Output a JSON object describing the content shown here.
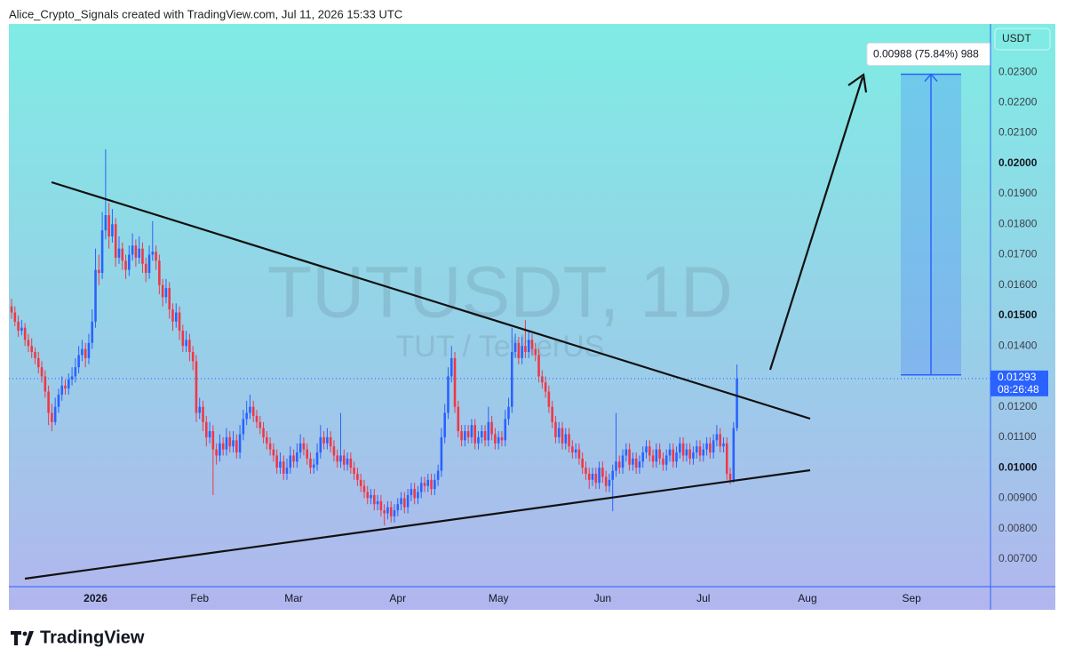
{
  "chart_data": {
    "type": "candlestick",
    "header": "Alice_Crypto_Signals created with TradingView.com, Jul 11, 2026 15:33 UTC",
    "watermark": "TUTUSDT, 1D",
    "watermark_sub": "TUT / TetherUS",
    "currency": "USDT",
    "countdown": "08:26:48",
    "brand": "TradingView",
    "up_color": "#2962ff",
    "down_color": "#f23645",
    "grid": false,
    "ylim": [
      0.00609,
      0.02458
    ],
    "yticks": [
      {
        "value": 0.023,
        "label": "0.02300"
      },
      {
        "value": 0.022,
        "label": "0.02200"
      },
      {
        "value": 0.021,
        "label": "0.02100"
      },
      {
        "value": 0.02,
        "label": "0.02000"
      },
      {
        "value": 0.019,
        "label": "0.01900"
      },
      {
        "value": 0.018,
        "label": "0.01800"
      },
      {
        "value": 0.017,
        "label": "0.01700"
      },
      {
        "value": 0.016,
        "label": "0.01600"
      },
      {
        "value": 0.015,
        "label": "0.01500"
      },
      {
        "value": 0.014,
        "label": "0.01400"
      },
      {
        "value": 0.012,
        "label": "0.01200"
      },
      {
        "value": 0.011,
        "label": "0.01100"
      },
      {
        "value": 0.01,
        "label": "0.01000"
      },
      {
        "value": 0.009,
        "label": "0.00900"
      },
      {
        "value": 0.008,
        "label": "0.00800"
      },
      {
        "value": 0.007,
        "label": "0.00700"
      }
    ],
    "xlim": [
      -0.8,
      291.5
    ],
    "xticks": [
      {
        "value": 25,
        "label": "2026"
      },
      {
        "value": 56,
        "label": "Feb"
      },
      {
        "value": 84,
        "label": "Mar"
      },
      {
        "value": 115,
        "label": "Apr"
      },
      {
        "value": 145,
        "label": "May"
      },
      {
        "value": 176,
        "label": "Jun"
      },
      {
        "value": 206,
        "label": "Jul"
      },
      {
        "value": 237,
        "label": "Aug"
      },
      {
        "value": 268,
        "label": "Sep"
      }
    ],
    "measure": {
      "label": "0.00988 (75.84%) 988",
      "from": 0.01305,
      "to": 0.02293
    },
    "candles": [
      [
        0.0153,
        0.01555,
        0.0149,
        0.0151
      ],
      [
        0.0151,
        0.0153,
        0.01465,
        0.0148
      ],
      [
        0.0148,
        0.015,
        0.0143,
        0.0145
      ],
      [
        0.0145,
        0.01485,
        0.01435,
        0.0146
      ],
      [
        0.0146,
        0.01475,
        0.014,
        0.0142
      ],
      [
        0.0142,
        0.0144,
        0.0138,
        0.014
      ],
      [
        0.014,
        0.01425,
        0.0136,
        0.0138
      ],
      [
        0.0138,
        0.01395,
        0.0134,
        0.0136
      ],
      [
        0.0136,
        0.0138,
        0.0131,
        0.0133
      ],
      [
        0.0133,
        0.0135,
        0.0128,
        0.013
      ],
      [
        0.013,
        0.0132,
        0.0123,
        0.0125
      ],
      [
        0.0125,
        0.0127,
        0.0114,
        0.0118
      ],
      [
        0.0118,
        0.0121,
        0.0112,
        0.0115
      ],
      [
        0.0115,
        0.0123,
        0.0114,
        0.012
      ],
      [
        0.012,
        0.0126,
        0.0118,
        0.0124
      ],
      [
        0.0124,
        0.013,
        0.0122,
        0.0127
      ],
      [
        0.0127,
        0.0129,
        0.0124,
        0.0126
      ],
      [
        0.0126,
        0.0131,
        0.0124,
        0.0129
      ],
      [
        0.0129,
        0.0133,
        0.0127,
        0.013
      ],
      [
        0.013,
        0.0136,
        0.0128,
        0.0133
      ],
      [
        0.0133,
        0.014,
        0.0131,
        0.0137
      ],
      [
        0.0137,
        0.0142,
        0.0135,
        0.0139
      ],
      [
        0.0139,
        0.0141,
        0.0133,
        0.0136
      ],
      [
        0.0136,
        0.0144,
        0.0134,
        0.0141
      ],
      [
        0.0141,
        0.0152,
        0.0139,
        0.0148
      ],
      [
        0.0148,
        0.0172,
        0.0146,
        0.0165
      ],
      [
        0.0165,
        0.017,
        0.016,
        0.0164
      ],
      [
        0.0164,
        0.0184,
        0.0162,
        0.0178
      ],
      [
        0.0178,
        0.02046,
        0.0175,
        0.0183
      ],
      [
        0.0183,
        0.0187,
        0.0172,
        0.0176
      ],
      [
        0.0176,
        0.0185,
        0.0174,
        0.018
      ],
      [
        0.018,
        0.0182,
        0.0166,
        0.0169
      ],
      [
        0.0169,
        0.0176,
        0.0167,
        0.0172
      ],
      [
        0.0172,
        0.0174,
        0.0165,
        0.0168
      ],
      [
        0.0168,
        0.017,
        0.0162,
        0.0165
      ],
      [
        0.0165,
        0.0173,
        0.0163,
        0.017
      ],
      [
        0.017,
        0.0177,
        0.0168,
        0.0173
      ],
      [
        0.0173,
        0.0175,
        0.0166,
        0.0169
      ],
      [
        0.0169,
        0.0176,
        0.0167,
        0.0172
      ],
      [
        0.0172,
        0.0174,
        0.0164,
        0.0167
      ],
      [
        0.0167,
        0.0169,
        0.0161,
        0.0164
      ],
      [
        0.0164,
        0.0173,
        0.0162,
        0.017
      ],
      [
        0.017,
        0.0181,
        0.0168,
        0.0171
      ],
      [
        0.0171,
        0.0173,
        0.0165,
        0.0168
      ],
      [
        0.0168,
        0.017,
        0.0157,
        0.016
      ],
      [
        0.016,
        0.0162,
        0.0153,
        0.0156
      ],
      [
        0.0156,
        0.0162,
        0.0154,
        0.0159
      ],
      [
        0.0159,
        0.0161,
        0.0149,
        0.0152
      ],
      [
        0.0152,
        0.0154,
        0.0145,
        0.0148
      ],
      [
        0.0148,
        0.0154,
        0.0146,
        0.0151
      ],
      [
        0.0151,
        0.0153,
        0.0142,
        0.0145
      ],
      [
        0.0145,
        0.0147,
        0.0138,
        0.014
      ],
      [
        0.014,
        0.0145,
        0.0138,
        0.0142
      ],
      [
        0.0142,
        0.0144,
        0.0135,
        0.0138
      ],
      [
        0.0138,
        0.014,
        0.0132,
        0.0135
      ],
      [
        0.0135,
        0.0137,
        0.0115,
        0.0118
      ],
      [
        0.0118,
        0.0123,
        0.0116,
        0.012
      ],
      [
        0.012,
        0.0122,
        0.0112,
        0.0115
      ],
      [
        0.0115,
        0.0117,
        0.0107,
        0.011
      ],
      [
        0.011,
        0.0115,
        0.0108,
        0.0112
      ],
      [
        0.0112,
        0.0114,
        0.0091,
        0.0106
      ],
      [
        0.0106,
        0.0108,
        0.0101,
        0.0104
      ],
      [
        0.0104,
        0.0111,
        0.0102,
        0.0108
      ],
      [
        0.0108,
        0.011,
        0.0104,
        0.0106
      ],
      [
        0.0106,
        0.0113,
        0.0104,
        0.011
      ],
      [
        0.011,
        0.0112,
        0.0105,
        0.0107
      ],
      [
        0.0107,
        0.0112,
        0.0105,
        0.0109
      ],
      [
        0.0109,
        0.0111,
        0.0103,
        0.0105
      ],
      [
        0.0105,
        0.0114,
        0.0103,
        0.0111
      ],
      [
        0.0111,
        0.0119,
        0.0109,
        0.0116
      ],
      [
        0.0116,
        0.0122,
        0.0114,
        0.0118
      ],
      [
        0.0118,
        0.0124,
        0.0116,
        0.012
      ],
      [
        0.012,
        0.0122,
        0.0115,
        0.0117
      ],
      [
        0.0117,
        0.0119,
        0.0113,
        0.0115
      ],
      [
        0.0115,
        0.0117,
        0.0111,
        0.0113
      ],
      [
        0.0113,
        0.0115,
        0.0108,
        0.011
      ],
      [
        0.011,
        0.0112,
        0.0106,
        0.0108
      ],
      [
        0.0108,
        0.011,
        0.0104,
        0.0106
      ],
      [
        0.0106,
        0.0108,
        0.0102,
        0.0104
      ],
      [
        0.0104,
        0.0106,
        0.0098,
        0.01
      ],
      [
        0.01,
        0.0105,
        0.0098,
        0.0102
      ],
      [
        0.0102,
        0.0104,
        0.0096,
        0.0098
      ],
      [
        0.0098,
        0.0103,
        0.0096,
        0.01
      ],
      [
        0.01,
        0.0107,
        0.0098,
        0.0104
      ],
      [
        0.0104,
        0.0106,
        0.01,
        0.0102
      ],
      [
        0.0102,
        0.0108,
        0.01,
        0.0105
      ],
      [
        0.0105,
        0.0111,
        0.0103,
        0.0108
      ],
      [
        0.0108,
        0.011,
        0.0104,
        0.0106
      ],
      [
        0.0106,
        0.0108,
        0.0101,
        0.0103
      ],
      [
        0.0103,
        0.0105,
        0.0098,
        0.01
      ],
      [
        0.01,
        0.0103,
        0.0098,
        0.0101
      ],
      [
        0.0101,
        0.0108,
        0.0099,
        0.0105
      ],
      [
        0.0105,
        0.0114,
        0.0103,
        0.011
      ],
      [
        0.011,
        0.0112,
        0.0106,
        0.0108
      ],
      [
        0.0108,
        0.0113,
        0.0106,
        0.011
      ],
      [
        0.011,
        0.0112,
        0.0105,
        0.0107
      ],
      [
        0.0107,
        0.0109,
        0.0102,
        0.0104
      ],
      [
        0.0104,
        0.0106,
        0.01,
        0.0102
      ],
      [
        0.0102,
        0.0118,
        0.01,
        0.0104
      ],
      [
        0.0104,
        0.0106,
        0.0099,
        0.0101
      ],
      [
        0.0101,
        0.0105,
        0.0099,
        0.0103
      ],
      [
        0.0103,
        0.0105,
        0.0098,
        0.01
      ],
      [
        0.01,
        0.0102,
        0.0096,
        0.0098
      ],
      [
        0.0098,
        0.01,
        0.0094,
        0.0096
      ],
      [
        0.0096,
        0.0098,
        0.0092,
        0.0094
      ],
      [
        0.0094,
        0.0096,
        0.009,
        0.0092
      ],
      [
        0.0092,
        0.0094,
        0.0088,
        0.009
      ],
      [
        0.009,
        0.0093,
        0.0088,
        0.0091
      ],
      [
        0.0091,
        0.0093,
        0.0086,
        0.0088
      ],
      [
        0.0088,
        0.0091,
        0.0086,
        0.0089
      ],
      [
        0.0089,
        0.0091,
        0.0084,
        0.0086
      ],
      [
        0.0086,
        0.0088,
        0.0081,
        0.0085
      ],
      [
        0.0085,
        0.0089,
        0.0083,
        0.0087
      ],
      [
        0.0087,
        0.0089,
        0.0082,
        0.0084
      ],
      [
        0.0084,
        0.0088,
        0.0082,
        0.0086
      ],
      [
        0.0086,
        0.009,
        0.0084,
        0.0088
      ],
      [
        0.0088,
        0.0092,
        0.0086,
        0.009
      ],
      [
        0.009,
        0.0092,
        0.0085,
        0.0087
      ],
      [
        0.0087,
        0.0093,
        0.0085,
        0.0091
      ],
      [
        0.0091,
        0.0095,
        0.0089,
        0.0093
      ],
      [
        0.0093,
        0.0095,
        0.0088,
        0.009
      ],
      [
        0.009,
        0.0094,
        0.0088,
        0.0092
      ],
      [
        0.0092,
        0.0097,
        0.009,
        0.0095
      ],
      [
        0.0095,
        0.0097,
        0.0092,
        0.0094
      ],
      [
        0.0094,
        0.0098,
        0.0092,
        0.0096
      ],
      [
        0.0096,
        0.0098,
        0.0091,
        0.0093
      ],
      [
        0.0093,
        0.0098,
        0.0091,
        0.0096
      ],
      [
        0.0096,
        0.0101,
        0.0094,
        0.0099
      ],
      [
        0.0099,
        0.0113,
        0.0097,
        0.011
      ],
      [
        0.011,
        0.0121,
        0.0108,
        0.0118
      ],
      [
        0.0118,
        0.0133,
        0.0116,
        0.013
      ],
      [
        0.013,
        0.014,
        0.0128,
        0.0136
      ],
      [
        0.0136,
        0.0138,
        0.0118,
        0.012
      ],
      [
        0.012,
        0.0122,
        0.011,
        0.0112
      ],
      [
        0.0112,
        0.0114,
        0.0107,
        0.0109
      ],
      [
        0.0109,
        0.0114,
        0.0107,
        0.0112
      ],
      [
        0.0112,
        0.0114,
        0.0108,
        0.011
      ],
      [
        0.011,
        0.0116,
        0.0108,
        0.0114
      ],
      [
        0.0114,
        0.0116,
        0.0106,
        0.0108
      ],
      [
        0.0108,
        0.0112,
        0.0106,
        0.011
      ],
      [
        0.011,
        0.0114,
        0.0108,
        0.0112
      ],
      [
        0.0112,
        0.0114,
        0.0107,
        0.0109
      ],
      [
        0.0109,
        0.012,
        0.0107,
        0.0115
      ],
      [
        0.0115,
        0.0117,
        0.0109,
        0.0111
      ],
      [
        0.0111,
        0.0113,
        0.0106,
        0.0108
      ],
      [
        0.0108,
        0.0112,
        0.0106,
        0.011
      ],
      [
        0.011,
        0.0112,
        0.0107,
        0.0109
      ],
      [
        0.0109,
        0.0119,
        0.0107,
        0.0116
      ],
      [
        0.0116,
        0.0123,
        0.0114,
        0.012
      ],
      [
        0.012,
        0.0146,
        0.0118,
        0.0138
      ],
      [
        0.0138,
        0.0144,
        0.0136,
        0.0141
      ],
      [
        0.0141,
        0.0143,
        0.0134,
        0.0136
      ],
      [
        0.0136,
        0.0143,
        0.0134,
        0.014
      ],
      [
        0.014,
        0.01485,
        0.0136,
        0.0138
      ],
      [
        0.0138,
        0.0145,
        0.0136,
        0.0142
      ],
      [
        0.0142,
        0.0144,
        0.0137,
        0.0139
      ],
      [
        0.0139,
        0.0141,
        0.0135,
        0.0137
      ],
      [
        0.0137,
        0.0139,
        0.0128,
        0.013
      ],
      [
        0.013,
        0.0132,
        0.0126,
        0.0128
      ],
      [
        0.0128,
        0.013,
        0.0123,
        0.0125
      ],
      [
        0.0125,
        0.0127,
        0.0118,
        0.012
      ],
      [
        0.012,
        0.0122,
        0.0113,
        0.0115
      ],
      [
        0.0115,
        0.0117,
        0.0108,
        0.011
      ],
      [
        0.011,
        0.0115,
        0.0108,
        0.0113
      ],
      [
        0.0113,
        0.0115,
        0.0106,
        0.0108
      ],
      [
        0.0108,
        0.0113,
        0.0106,
        0.0111
      ],
      [
        0.0111,
        0.0113,
        0.0105,
        0.0107
      ],
      [
        0.0107,
        0.0109,
        0.0103,
        0.0105
      ],
      [
        0.0105,
        0.0108,
        0.0103,
        0.0106
      ],
      [
        0.0106,
        0.0108,
        0.0101,
        0.0103
      ],
      [
        0.0103,
        0.0105,
        0.0098,
        0.01
      ],
      [
        0.01,
        0.0102,
        0.0096,
        0.0098
      ],
      [
        0.0098,
        0.01,
        0.0093,
        0.0096
      ],
      [
        0.0096,
        0.01,
        0.0094,
        0.0098
      ],
      [
        0.0098,
        0.01,
        0.0093,
        0.0095
      ],
      [
        0.0095,
        0.0102,
        0.0093,
        0.01
      ],
      [
        0.01,
        0.0102,
        0.0095,
        0.0097
      ],
      [
        0.0097,
        0.0099,
        0.0092,
        0.0094
      ],
      [
        0.0094,
        0.0098,
        0.0092,
        0.0096
      ],
      [
        0.0096,
        0.0101,
        0.00857,
        0.0099
      ],
      [
        0.0099,
        0.0118,
        0.0097,
        0.0102
      ],
      [
        0.0102,
        0.0104,
        0.0098,
        0.01
      ],
      [
        0.01,
        0.0106,
        0.0098,
        0.0104
      ],
      [
        0.0104,
        0.0108,
        0.0102,
        0.0106
      ],
      [
        0.0106,
        0.0108,
        0.0099,
        0.0101
      ],
      [
        0.0101,
        0.0105,
        0.0099,
        0.0103
      ],
      [
        0.0103,
        0.0105,
        0.0098,
        0.01
      ],
      [
        0.01,
        0.0104,
        0.0098,
        0.0102
      ],
      [
        0.0102,
        0.0107,
        0.01,
        0.0105
      ],
      [
        0.0105,
        0.0109,
        0.0103,
        0.0107
      ],
      [
        0.0107,
        0.0109,
        0.0102,
        0.0104
      ],
      [
        0.0104,
        0.0106,
        0.01,
        0.0102
      ],
      [
        0.0102,
        0.0108,
        0.01,
        0.0106
      ],
      [
        0.0106,
        0.0108,
        0.0101,
        0.0103
      ],
      [
        0.0103,
        0.0105,
        0.0099,
        0.0101
      ],
      [
        0.0101,
        0.0106,
        0.0099,
        0.0104
      ],
      [
        0.0104,
        0.0108,
        0.0102,
        0.0106
      ],
      [
        0.0106,
        0.0108,
        0.01,
        0.0102
      ],
      [
        0.0102,
        0.0107,
        0.01,
        0.0105
      ],
      [
        0.0105,
        0.011,
        0.0103,
        0.0108
      ],
      [
        0.0108,
        0.011,
        0.0102,
        0.0104
      ],
      [
        0.0104,
        0.0108,
        0.0102,
        0.0106
      ],
      [
        0.0106,
        0.0108,
        0.0101,
        0.0103
      ],
      [
        0.0103,
        0.0107,
        0.0101,
        0.0105
      ],
      [
        0.0105,
        0.0109,
        0.0103,
        0.0107
      ],
      [
        0.0107,
        0.0109,
        0.0102,
        0.0104
      ],
      [
        0.0104,
        0.0108,
        0.0102,
        0.0106
      ],
      [
        0.0106,
        0.011,
        0.0104,
        0.0108
      ],
      [
        0.0108,
        0.011,
        0.0103,
        0.0105
      ],
      [
        0.0105,
        0.0111,
        0.0103,
        0.0109
      ],
      [
        0.0109,
        0.0114,
        0.0107,
        0.0111
      ],
      [
        0.0111,
        0.0113,
        0.0105,
        0.0107
      ],
      [
        0.0107,
        0.011,
        0.0105,
        0.0108
      ],
      [
        0.0108,
        0.011,
        0.0096,
        0.0098
      ],
      [
        0.0098,
        0.01,
        0.00945,
        0.0096
      ],
      [
        0.0096,
        0.0115,
        0.0095,
        0.0113
      ],
      [
        0.0113,
        0.01339,
        0.0112,
        0.01293
      ]
    ]
  }
}
